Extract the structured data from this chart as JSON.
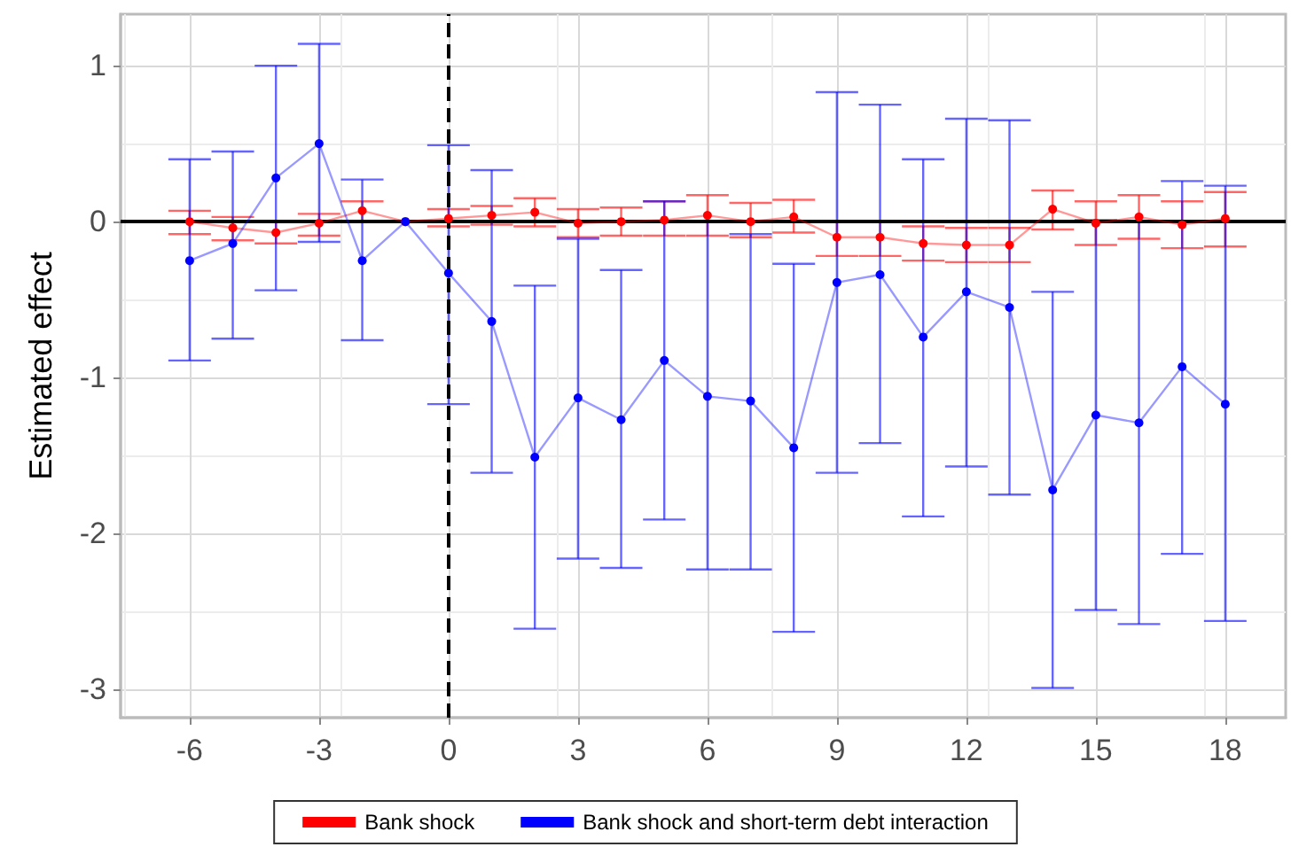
{
  "chart_data": {
    "type": "line",
    "ylabel": "Estimated effect",
    "x": [
      -6,
      -5,
      -4,
      -3,
      -2,
      -1,
      0,
      1,
      2,
      3,
      4,
      5,
      6,
      7,
      8,
      9,
      10,
      11,
      12,
      13,
      14,
      15,
      16,
      17,
      18
    ],
    "xlim": [
      -7.6,
      19.4
    ],
    "xticks": [
      -6,
      -3,
      0,
      3,
      6,
      9,
      12,
      15,
      18
    ],
    "ylim": [
      -3.18,
      1.33
    ],
    "yticks": [
      -3,
      -2,
      -1,
      0,
      1
    ],
    "series": [
      {
        "name": "Bank shock",
        "color": "#ff0000",
        "values": [
          0.0,
          -0.04,
          -0.07,
          -0.01,
          0.07,
          0,
          0.02,
          0.04,
          0.06,
          -0.01,
          0.0,
          0.01,
          0.04,
          0.0,
          0.03,
          -0.1,
          -0.1,
          -0.14,
          -0.15,
          -0.15,
          0.08,
          -0.01,
          0.03,
          -0.02,
          0.02
        ],
        "errors": [
          [
            -0.08,
            0.07
          ],
          [
            -0.12,
            0.03
          ],
          [
            -0.14,
            0.0
          ],
          [
            -0.09,
            0.05
          ],
          [
            0.0,
            0.13
          ],
          null,
          [
            -0.03,
            0.08
          ],
          [
            -0.02,
            0.1
          ],
          [
            -0.03,
            0.15
          ],
          [
            -0.1,
            0.08
          ],
          [
            -0.09,
            0.09
          ],
          [
            -0.09,
            0.13
          ],
          [
            -0.09,
            0.17
          ],
          [
            -0.1,
            0.12
          ],
          [
            -0.07,
            0.14
          ],
          [
            -0.22,
            0.0
          ],
          [
            -0.22,
            0.0
          ],
          [
            -0.25,
            -0.03
          ],
          [
            -0.26,
            -0.04
          ],
          [
            -0.26,
            -0.04
          ],
          [
            -0.05,
            0.2
          ],
          [
            -0.15,
            0.13
          ],
          [
            -0.11,
            0.17
          ],
          [
            -0.17,
            0.13
          ],
          [
            -0.16,
            0.19
          ]
        ]
      },
      {
        "name": "Bank shock and short-term debt interaction",
        "color": "#0000ff",
        "values": [
          -0.25,
          -0.14,
          0.28,
          0.5,
          -0.25,
          0,
          -0.33,
          -0.64,
          -1.51,
          -1.13,
          -1.27,
          -0.89,
          -1.12,
          -1.15,
          -1.45,
          -0.39,
          -0.34,
          -0.74,
          -0.45,
          -0.55,
          -1.72,
          -1.24,
          -1.29,
          -0.93,
          -1.17
        ],
        "errors": [
          [
            -0.89,
            0.4
          ],
          [
            -0.75,
            0.45
          ],
          [
            -0.44,
            1.0
          ],
          [
            -0.13,
            1.14
          ],
          [
            -0.76,
            0.27
          ],
          null,
          [
            -1.17,
            0.49
          ],
          [
            -1.61,
            0.33
          ],
          [
            -2.61,
            -0.41
          ],
          [
            -2.16,
            -0.11
          ],
          [
            -2.22,
            -0.31
          ],
          [
            -1.91,
            0.13
          ],
          [
            -2.23,
            0.0
          ],
          [
            -2.23,
            -0.08
          ],
          [
            -2.63,
            -0.27
          ],
          [
            -1.61,
            0.83
          ],
          [
            -1.42,
            0.75
          ],
          [
            -1.89,
            0.4
          ],
          [
            -1.57,
            0.66
          ],
          [
            -1.75,
            0.65
          ],
          [
            -2.99,
            -0.45
          ],
          [
            -2.49,
            0.01
          ],
          [
            -2.58,
            0.0
          ],
          [
            -2.13,
            0.26
          ],
          [
            -2.56,
            0.23
          ]
        ]
      }
    ],
    "ref_lines": [
      {
        "axis": "y",
        "value": 0,
        "color": "#000000",
        "line_style": "solid"
      },
      {
        "axis": "x",
        "value": 0,
        "color": "#000000",
        "line_style": "dashed"
      }
    ],
    "grid": true,
    "legend": "bottom",
    "marker": "circle",
    "line_style": "solid"
  }
}
